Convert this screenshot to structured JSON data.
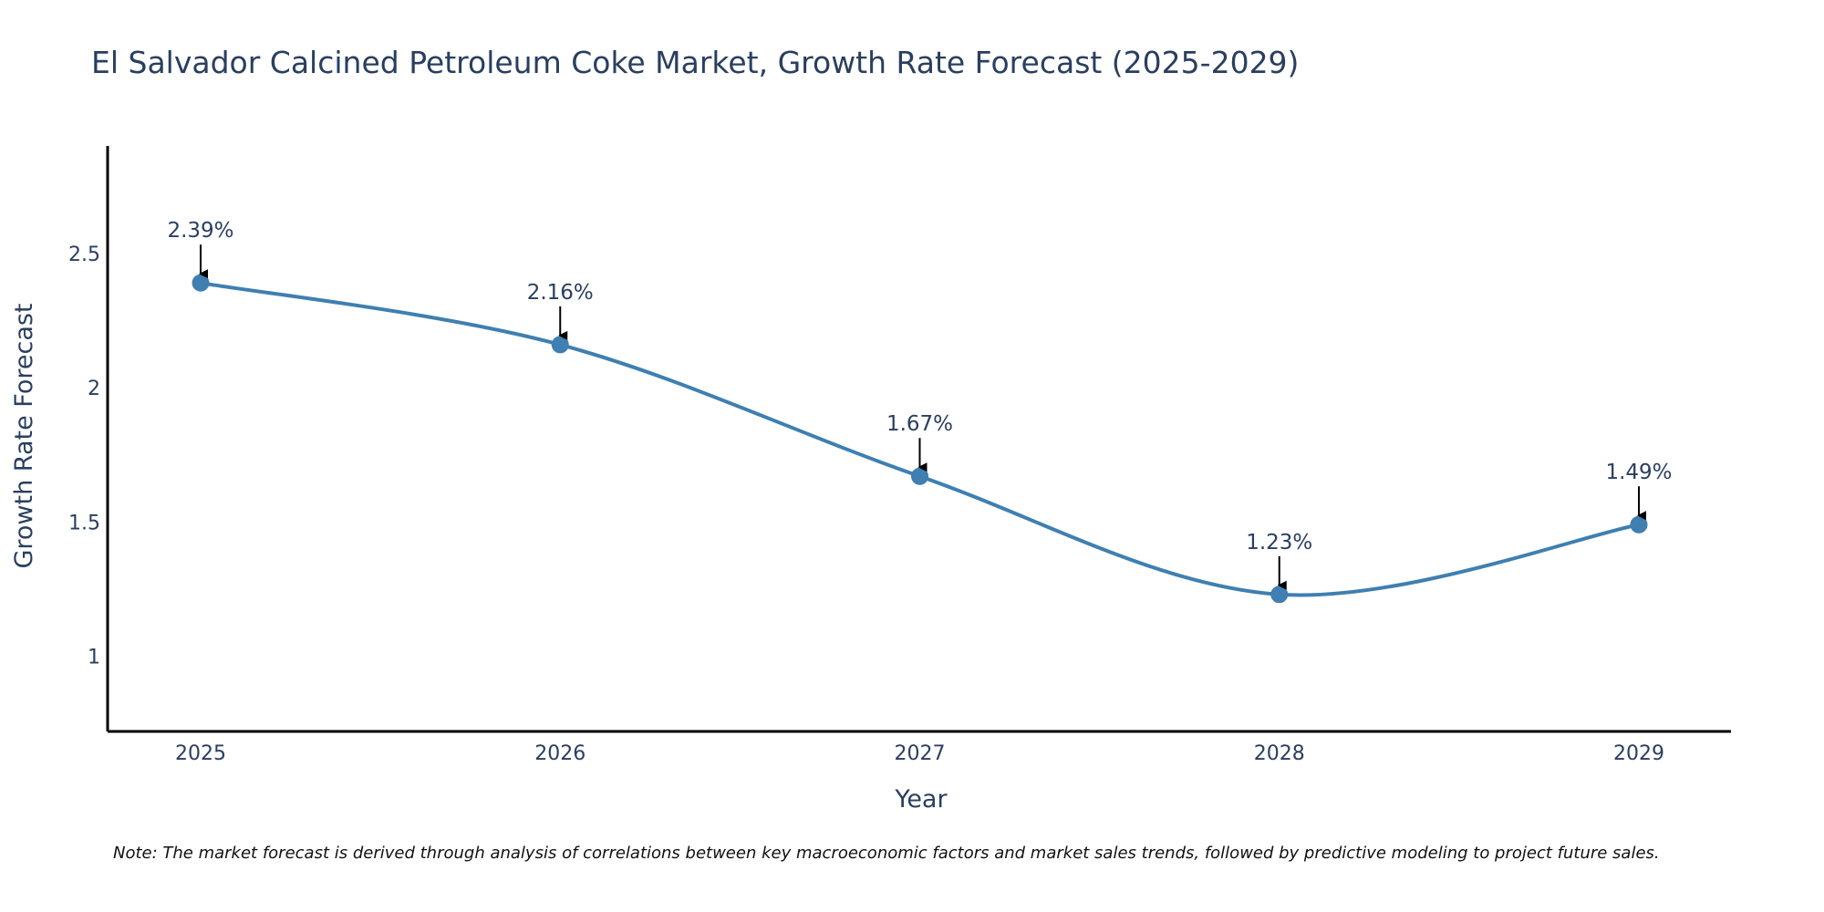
{
  "colors": {
    "line": "#3f7fb1",
    "axis": "#000000",
    "text": "#2a3f5f",
    "arrow": "#000000",
    "background": "#ffffff"
  },
  "chart_data": {
    "type": "line",
    "title": "El Salvador Calcined Petroleum Coke Market, Growth Rate Forecast (2025-2029)",
    "xlabel": "Year",
    "ylabel": "Growth Rate Forecast",
    "x": [
      "2025",
      "2026",
      "2027",
      "2028",
      "2029"
    ],
    "series": [
      {
        "name": "Growth Rate Forecast",
        "values": [
          2.39,
          2.16,
          1.67,
          1.23,
          1.49
        ]
      }
    ],
    "data_labels": [
      "2.39%",
      "2.16%",
      "1.67%",
      "1.23%",
      "1.49%"
    ],
    "yticks": [
      1,
      1.5,
      2,
      2.5
    ],
    "ytick_labels": [
      "1",
      "1.5",
      "2",
      "2.5"
    ],
    "ylim": [
      0.72,
      2.9
    ],
    "grid": false,
    "line_shape": "spline",
    "note": "Note: The market forecast is derived through analysis of correlations between key macroeconomic factors and market sales trends, followed by predictive modeling to project future sales."
  }
}
